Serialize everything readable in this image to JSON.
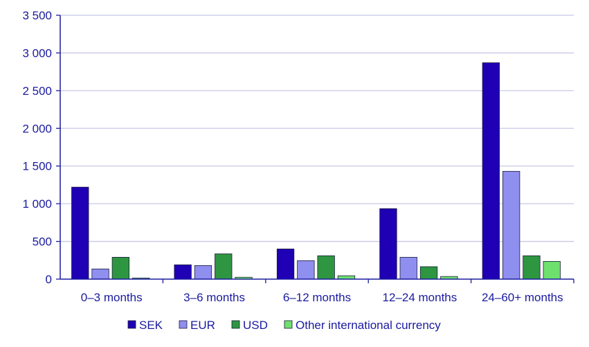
{
  "chart_data": {
    "type": "bar",
    "categories": [
      "0–3 months",
      "3–6 months",
      "6–12 months",
      "12–24 months",
      "24–60+ months"
    ],
    "series": [
      {
        "name": "SEK",
        "color": "#1f00b4",
        "values": [
          1220,
          190,
          400,
          935,
          2870
        ]
      },
      {
        "name": "EUR",
        "color": "#8f8ff0",
        "values": [
          135,
          180,
          245,
          290,
          1430
        ]
      },
      {
        "name": "USD",
        "color": "#2e9640",
        "values": [
          290,
          335,
          310,
          165,
          310
        ]
      },
      {
        "name": "Other international currency",
        "color": "#6ee06e",
        "values": [
          15,
          25,
          45,
          35,
          235
        ]
      }
    ],
    "ylim": [
      0,
      3500
    ],
    "yticks": [
      0,
      500,
      1000,
      1500,
      2000,
      2500,
      3000,
      3500
    ],
    "ytick_labels": [
      "0",
      "500",
      "1 000",
      "1 500",
      "2 000",
      "2 500",
      "3 000",
      "3 500"
    ],
    "grid": true,
    "legend_position": "bottom"
  }
}
